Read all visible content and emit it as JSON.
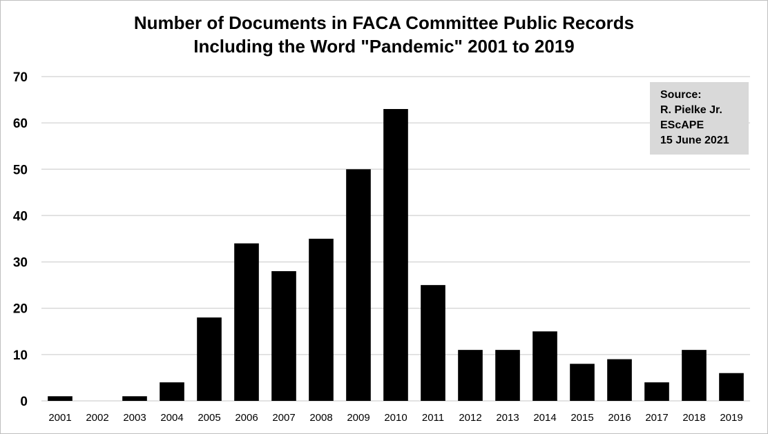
{
  "colors": {
    "bar": "#000000",
    "grid": "#d9d9d9",
    "source_box_bg": "#d9d9d9"
  },
  "source_box": {
    "lines": [
      "Source:",
      "R. Pielke Jr.",
      "EScAPE",
      "15 June 2021"
    ]
  },
  "chart_data": {
    "type": "bar",
    "title": "Number of Documents in FACA Committee Public Records",
    "subtitle": "Including the Word \"Pandemic\" 2001 to 2019",
    "xlabel": "",
    "ylabel": "",
    "ylim": [
      0,
      70
    ],
    "yticks": [
      0,
      10,
      20,
      30,
      40,
      50,
      60,
      70
    ],
    "grid": true,
    "categories": [
      "2001",
      "2002",
      "2003",
      "2004",
      "2005",
      "2006",
      "2007",
      "2008",
      "2009",
      "2010",
      "2011",
      "2012",
      "2013",
      "2014",
      "2015",
      "2016",
      "2017",
      "2018",
      "2019"
    ],
    "values": [
      1,
      0,
      1,
      4,
      18,
      34,
      28,
      35,
      50,
      63,
      25,
      11,
      11,
      15,
      8,
      9,
      4,
      11,
      6
    ]
  }
}
